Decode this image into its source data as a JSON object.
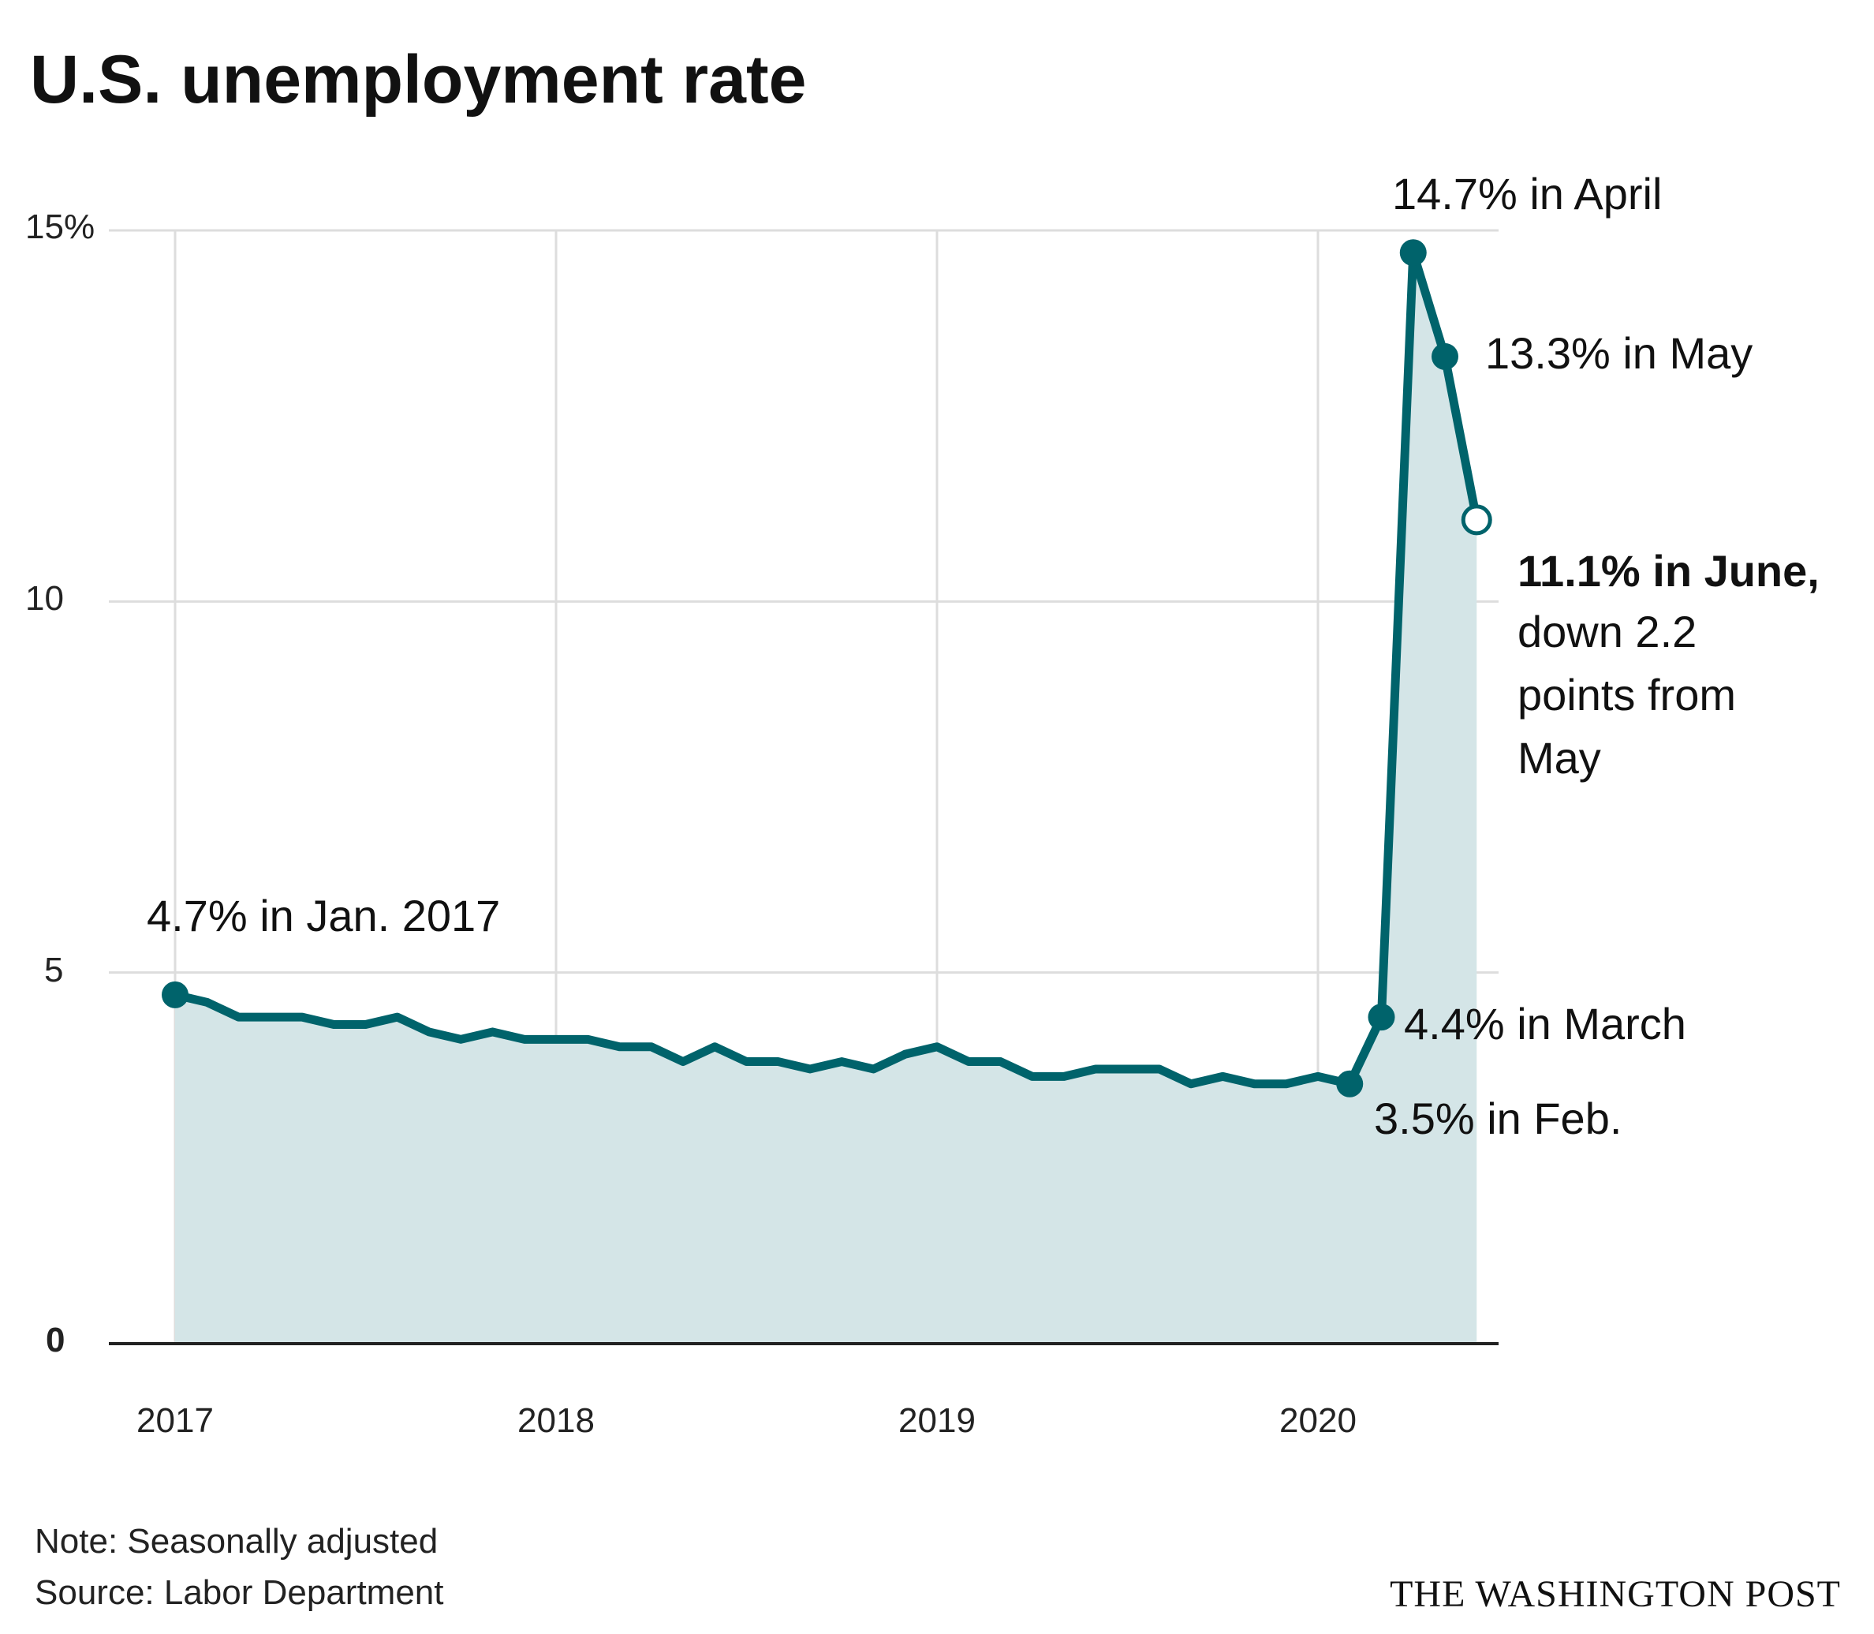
{
  "chart_data": {
    "type": "area",
    "title": "U.S. unemployment rate",
    "xlabel": "",
    "ylabel": "",
    "ylim": [
      0,
      15
    ],
    "xlim": [
      "2017-01",
      "2020-06"
    ],
    "grid": true,
    "legend": "none",
    "x_tick_labels": [
      "2017",
      "2018",
      "2019",
      "2020"
    ],
    "y_tick_labels": [
      "15%",
      "10",
      "5",
      "0"
    ],
    "y_tick_values": [
      15,
      10,
      5,
      0
    ],
    "colors": {
      "line": "#00636b",
      "fill": "#d4e5e7",
      "grid": "#dddddd",
      "axis": "#222222"
    },
    "series": [
      {
        "x": [
          "2017-01",
          "2017-02",
          "2017-03",
          "2017-04",
          "2017-05",
          "2017-06",
          "2017-07",
          "2017-08",
          "2017-09",
          "2017-10",
          "2017-11",
          "2017-12",
          "2018-01",
          "2018-02",
          "2018-03",
          "2018-04",
          "2018-05",
          "2018-06",
          "2018-07",
          "2018-08",
          "2018-09",
          "2018-10",
          "2018-11",
          "2018-12",
          "2019-01",
          "2019-02",
          "2019-03",
          "2019-04",
          "2019-05",
          "2019-06",
          "2019-07",
          "2019-08",
          "2019-09",
          "2019-10",
          "2019-11",
          "2019-12",
          "2020-01",
          "2020-02",
          "2020-03",
          "2020-04",
          "2020-05",
          "2020-06"
        ],
        "values": [
          4.7,
          4.6,
          4.4,
          4.4,
          4.4,
          4.3,
          4.3,
          4.4,
          4.2,
          4.1,
          4.2,
          4.1,
          4.1,
          4.1,
          4.0,
          4.0,
          3.8,
          4.0,
          3.8,
          3.8,
          3.7,
          3.8,
          3.7,
          3.9,
          4.0,
          3.8,
          3.8,
          3.6,
          3.6,
          3.7,
          3.7,
          3.7,
          3.5,
          3.6,
          3.5,
          3.5,
          3.6,
          3.5,
          4.4,
          14.7,
          13.3,
          11.1
        ]
      }
    ],
    "highlighted_points": [
      {
        "x": "2017-01",
        "value": 4.7,
        "style": "filled"
      },
      {
        "x": "2020-02",
        "value": 3.5,
        "style": "filled"
      },
      {
        "x": "2020-03",
        "value": 4.4,
        "style": "filled"
      },
      {
        "x": "2020-04",
        "value": 14.7,
        "style": "filled"
      },
      {
        "x": "2020-05",
        "value": 13.3,
        "style": "filled"
      },
      {
        "x": "2020-06",
        "value": 11.1,
        "style": "open"
      }
    ],
    "annotations": {
      "jan2017": "4.7% in Jan. 2017",
      "feb": "3.5% in Feb.",
      "march": "4.4% in March",
      "april": "14.7% in April",
      "may": "13.3% in May",
      "june_bold": "11.1% in June,",
      "june_line2": "down 2.2",
      "june_line3": "points from",
      "june_line4": "May"
    }
  },
  "footer": {
    "note": "Note: Seasonally adjusted",
    "source": "Source: Labor Department",
    "credit": "THE WASHINGTON POST"
  }
}
